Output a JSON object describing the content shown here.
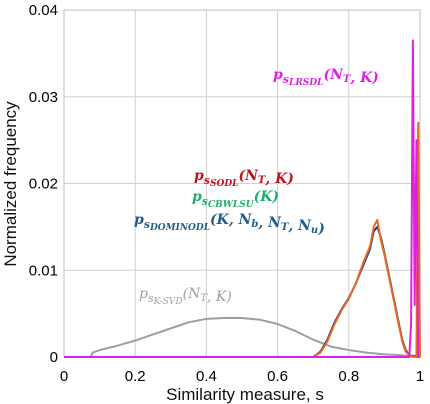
{
  "chart_data": {
    "type": "line",
    "title": "",
    "xlabel": "Similarity measure, s",
    "ylabel": "Normalized frequency",
    "xlim": [
      0,
      1
    ],
    "ylim": [
      0,
      0.04
    ],
    "x_ticks": [
      "0",
      "0.2",
      "0.4",
      "0.6",
      "0.8",
      "1"
    ],
    "y_ticks": [
      "0",
      "0.01",
      "0.02",
      "0.03",
      "0.04"
    ],
    "grid": true,
    "legend": "annotations",
    "series": [
      {
        "name": "p_{s_{K-SVD}}(N_T, K)",
        "color": "#9e9e9e",
        "x": [
          0.0,
          0.075,
          0.08,
          0.1,
          0.15,
          0.2,
          0.25,
          0.3,
          0.35,
          0.4,
          0.45,
          0.5,
          0.55,
          0.6,
          0.65,
          0.7,
          0.75,
          0.8,
          0.85,
          0.9,
          0.95,
          0.97,
          0.98
        ],
        "y": [
          0.0,
          0.0,
          0.0005,
          0.0008,
          0.0013,
          0.0019,
          0.0026,
          0.0033,
          0.004,
          0.0044,
          0.0045,
          0.0045,
          0.0043,
          0.0038,
          0.003,
          0.002,
          0.0012,
          0.0008,
          0.0005,
          0.0003,
          0.0002,
          0.0001,
          0.0
        ]
      },
      {
        "name": "p_{s_{DOMINODL}}(K, N_b, N_T, N_u)",
        "color": "#1f3c8a",
        "x": [
          0.0,
          0.7,
          0.72,
          0.74,
          0.76,
          0.78,
          0.8,
          0.82,
          0.84,
          0.86,
          0.87,
          0.88,
          0.89,
          0.9,
          0.91,
          0.92,
          0.93,
          0.94,
          0.95,
          0.96,
          0.97,
          1.0
        ],
        "y": [
          0.0,
          0.0,
          0.0006,
          0.002,
          0.004,
          0.0055,
          0.0068,
          0.0085,
          0.0105,
          0.0125,
          0.0145,
          0.015,
          0.0138,
          0.012,
          0.01,
          0.008,
          0.006,
          0.004,
          0.002,
          0.0008,
          0.0002,
          0.0
        ]
      },
      {
        "name": "p_{s_{SODL}}(N_T, K)",
        "color": "#e56b1f",
        "x": [
          0.0,
          0.7,
          0.72,
          0.74,
          0.76,
          0.78,
          0.8,
          0.82,
          0.84,
          0.86,
          0.87,
          0.88,
          0.89,
          0.9,
          0.91,
          0.92,
          0.93,
          0.94,
          0.95,
          0.96,
          0.97,
          0.985,
          0.99,
          0.995,
          1.0
        ],
        "y": [
          0.0,
          0.0,
          0.0005,
          0.0018,
          0.0038,
          0.0054,
          0.0067,
          0.0085,
          0.0108,
          0.0128,
          0.015,
          0.0158,
          0.0135,
          0.0118,
          0.0098,
          0.0078,
          0.0058,
          0.0038,
          0.0018,
          0.0006,
          0.0002,
          0.0,
          0.0,
          0.027,
          0.0
        ]
      },
      {
        "name": "p_{s_{LRSDL}}(N_T, K)",
        "color": "#e020e0",
        "x": [
          0.0,
          0.97,
          0.975,
          0.98,
          0.985,
          0.99,
          0.995,
          1.0
        ],
        "y": [
          0.0,
          0.0,
          0.004,
          0.0365,
          0.006,
          0.025,
          0.0,
          0.0
        ]
      }
    ],
    "annotations": [
      {
        "label": "p_{s_{LRSDL}}(N_T, K)",
        "color": "#e020e0"
      },
      {
        "label": "p_{s_{SODL}}(N_T, K)",
        "color": "#c0121c"
      },
      {
        "label": "p_{s_{CBWLSU}}(K)",
        "color": "#1faf6a"
      },
      {
        "label": "p_{s_{DOMINODL}}(K, N_b, N_T, N_u)",
        "color": "#1f5e8a"
      },
      {
        "label": "p_{s_{K-SVD}}(N_T, K)",
        "color": "#a0a0a0"
      }
    ]
  }
}
